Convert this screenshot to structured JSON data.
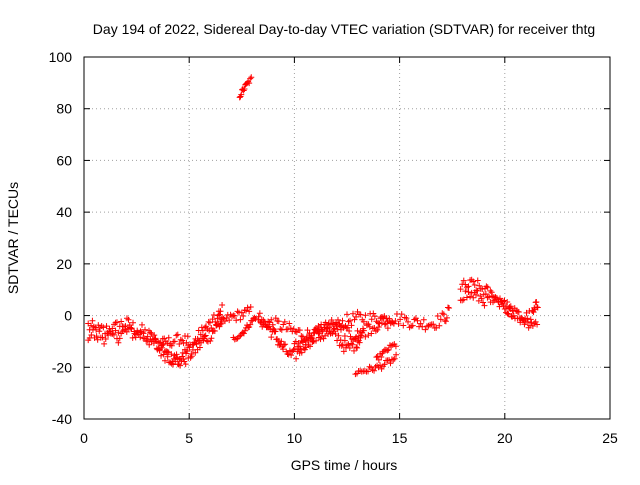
{
  "chart_data": {
    "type": "scatter",
    "title": "Day 194 of 2022, Sidereal Day-to-day VTEC variation (SDTVAR) for receiver thtg",
    "xlabel": "GPS time / hours",
    "ylabel": "SDTVAR / TECUs",
    "xlim": [
      0,
      25
    ],
    "ylim": [
      -40,
      100
    ],
    "xticks": [
      0,
      5,
      10,
      15,
      20,
      25
    ],
    "yticks": [
      -40,
      -20,
      0,
      20,
      40,
      60,
      80,
      100
    ],
    "grid": true,
    "marker": "+",
    "color": "#ff0000",
    "tracks": [
      {
        "points": [
          [
            0.2,
            -4
          ],
          [
            0.6,
            -6
          ],
          [
            1.0,
            -6
          ],
          [
            1.5,
            -5
          ],
          [
            1.9,
            -3
          ],
          [
            2.4,
            -5
          ],
          [
            2.9,
            -7
          ],
          [
            3.4,
            -10
          ],
          [
            3.9,
            -13
          ],
          [
            4.4,
            -16
          ],
          [
            4.8,
            -15
          ],
          [
            5.3,
            -10
          ],
          [
            5.8,
            -5
          ],
          [
            6.3,
            -2
          ],
          [
            6.6,
            2
          ]
        ],
        "spread": 3
      },
      {
        "points": [
          [
            0.2,
            -7
          ],
          [
            0.8,
            -8
          ],
          [
            1.5,
            -8
          ],
          [
            2.1,
            -6
          ],
          [
            2.6,
            -7
          ],
          [
            3.1,
            -9
          ],
          [
            3.6,
            -13
          ],
          [
            4.1,
            -16
          ],
          [
            4.5,
            -18
          ],
          [
            4.9,
            -16
          ],
          [
            5.4,
            -12
          ],
          [
            6.0,
            -7
          ],
          [
            6.6,
            -2
          ]
        ],
        "spread": 3
      },
      {
        "points": [
          [
            3.6,
            -11
          ],
          [
            4.1,
            -10
          ],
          [
            4.6,
            -9
          ],
          [
            5.0,
            -10
          ]
        ],
        "spread": 2
      },
      {
        "points": [
          [
            6.5,
            -3
          ],
          [
            6.9,
            -1
          ],
          [
            7.3,
            0
          ],
          [
            7.7,
            1
          ],
          [
            8.0,
            2
          ]
        ],
        "spread": 2
      },
      {
        "points": [
          [
            7.4,
            85
          ],
          [
            7.7,
            89
          ],
          [
            8.0,
            92
          ]
        ],
        "spread": 1
      },
      {
        "points": [
          [
            7.1,
            -9
          ],
          [
            7.5,
            -7
          ],
          [
            7.9,
            -3
          ],
          [
            8.2,
            0
          ]
        ],
        "spread": 1
      },
      {
        "points": [
          [
            8.3,
            -2
          ],
          [
            8.9,
            -3
          ],
          [
            9.4,
            -4
          ],
          [
            9.9,
            -6
          ],
          [
            10.4,
            -7
          ],
          [
            11.0,
            -8
          ],
          [
            11.5,
            -6
          ],
          [
            12.0,
            -4
          ],
          [
            12.5,
            -2
          ],
          [
            13.0,
            -1
          ],
          [
            13.6,
            -1
          ],
          [
            14.2,
            -1
          ],
          [
            14.8,
            -1
          ],
          [
            15.4,
            -2
          ],
          [
            16.0,
            -3
          ],
          [
            16.6,
            -3
          ],
          [
            17.1,
            -1
          ],
          [
            17.4,
            2
          ]
        ],
        "spread": 2.5
      },
      {
        "points": [
          [
            8.3,
            -1
          ],
          [
            8.7,
            -4
          ],
          [
            9.1,
            -8
          ],
          [
            9.5,
            -13
          ],
          [
            9.9,
            -16
          ],
          [
            10.2,
            -14
          ],
          [
            10.6,
            -10
          ],
          [
            11.1,
            -8
          ],
          [
            11.6,
            -7
          ],
          [
            12.1,
            -9
          ],
          [
            12.5,
            -13
          ],
          [
            12.9,
            -11
          ],
          [
            13.3,
            -6
          ],
          [
            13.8,
            -4
          ],
          [
            14.3,
            -3
          ],
          [
            14.8,
            -2
          ]
        ],
        "spread": 2.5
      },
      {
        "points": [
          [
            10.0,
            -12
          ],
          [
            10.6,
            -9
          ],
          [
            11.2,
            -5
          ],
          [
            11.7,
            -3
          ],
          [
            12.2,
            -5
          ],
          [
            12.8,
            -8
          ],
          [
            13.2,
            -7
          ]
        ],
        "spread": 2
      },
      {
        "points": [
          [
            12.9,
            -22
          ],
          [
            13.5,
            -21
          ],
          [
            14.0,
            -20
          ],
          [
            14.5,
            -18
          ],
          [
            14.9,
            -16
          ]
        ],
        "spread": 1.2
      },
      {
        "points": [
          [
            13.9,
            -17
          ],
          [
            14.3,
            -14
          ],
          [
            14.6,
            -12
          ],
          [
            14.9,
            -11
          ]
        ],
        "spread": 1
      },
      {
        "points": [
          [
            17.9,
            11
          ],
          [
            18.5,
            12
          ],
          [
            19.0,
            10
          ],
          [
            19.5,
            7
          ],
          [
            20.0,
            4
          ],
          [
            20.4,
            1
          ],
          [
            20.9,
            -1
          ],
          [
            21.3,
            0
          ],
          [
            21.6,
            5
          ]
        ],
        "spread": 2.5
      },
      {
        "points": [
          [
            17.9,
            8
          ],
          [
            18.5,
            8
          ],
          [
            19.1,
            6
          ],
          [
            19.7,
            5
          ],
          [
            20.2,
            3
          ],
          [
            20.6,
            0
          ],
          [
            21.0,
            -2
          ],
          [
            21.4,
            -3
          ],
          [
            21.6,
            -4
          ]
        ],
        "spread": 2.5
      }
    ]
  }
}
